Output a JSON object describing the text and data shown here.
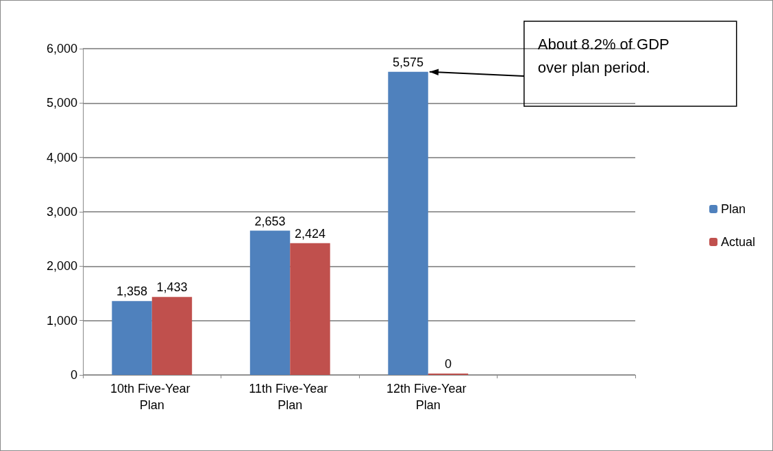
{
  "chart_data": {
    "type": "bar",
    "categories": [
      "10th Five-Year Plan",
      "11th Five-Year Plan",
      "12th Five-Year Plan",
      null
    ],
    "series": [
      {
        "name": "Plan",
        "color": "#4f81bd",
        "values": [
          1358,
          2653,
          5575,
          null
        ],
        "value_labels": [
          "1,358",
          "2,653",
          "5,575",
          null
        ]
      },
      {
        "name": "Actual",
        "color": "#c0504d",
        "values": [
          1433,
          2424,
          0,
          null
        ],
        "value_labels": [
          "1,433",
          "2,424",
          "0",
          null
        ]
      }
    ],
    "ylim": [
      0,
      6000
    ],
    "yticks": [
      0,
      {
        "value": 1000,
        "label": "1,000"
      },
      {
        "value": 2000,
        "label": "2,000"
      },
      {
        "value": 3000,
        "label": "3,000"
      },
      {
        "value": 4000,
        "label": "4,000"
      },
      {
        "value": 5000,
        "label": "5,000"
      },
      {
        "value": 6000,
        "label": "6,000"
      }
    ],
    "grid": "y",
    "legend": "right",
    "annotations": [
      {
        "text": "About 8.2% of GDP over plan period.",
        "x": "12th Five-Year Plan",
        "y": 5575
      }
    ]
  }
}
